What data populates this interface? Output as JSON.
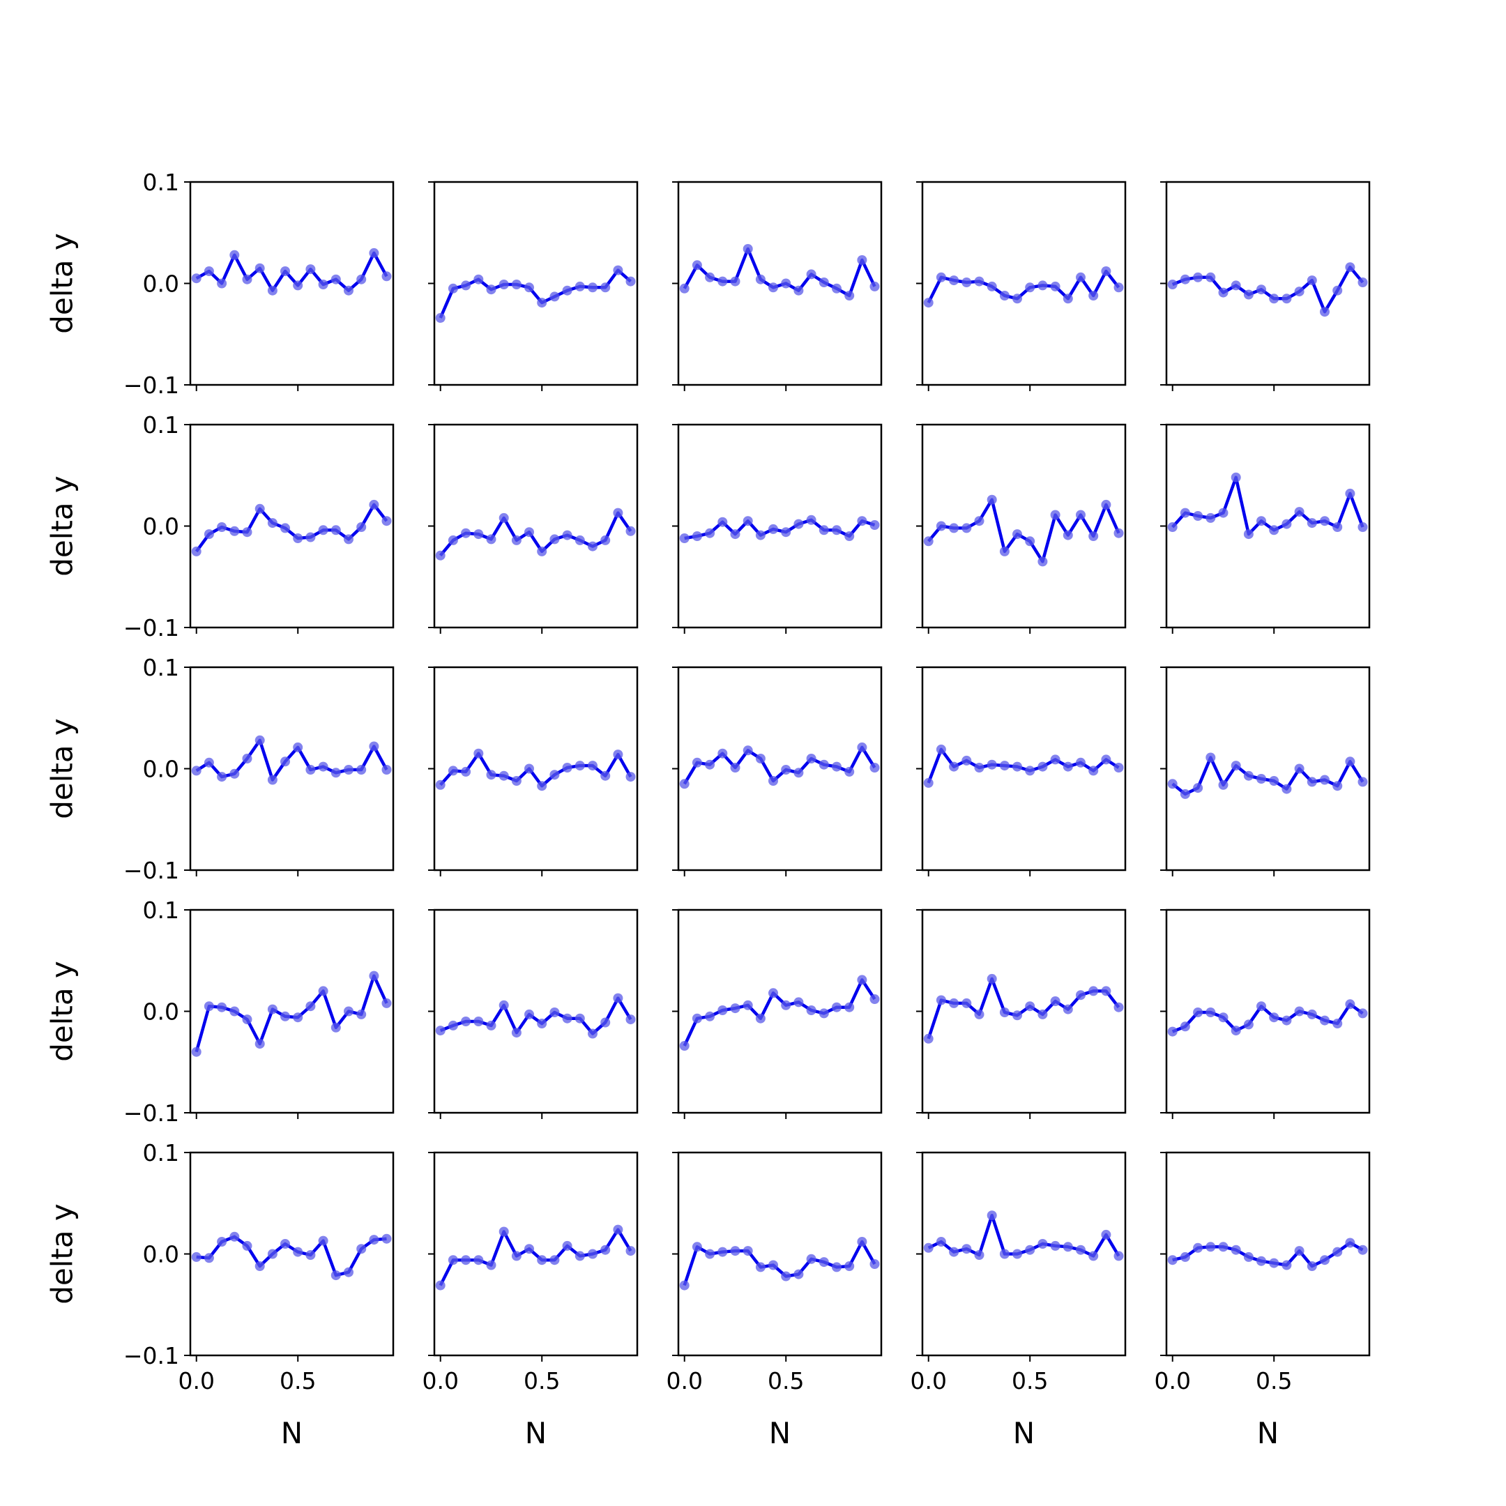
{
  "chart_data": {
    "type": "line",
    "layout": {
      "rows": 5,
      "cols": 5
    },
    "x": [
      0.0,
      0.0625,
      0.125,
      0.1875,
      0.25,
      0.3125,
      0.375,
      0.4375,
      0.5,
      0.5625,
      0.625,
      0.6875,
      0.75,
      0.8125,
      0.875,
      0.9375
    ],
    "xlim": [
      -0.03,
      0.97
    ],
    "ylim": [
      -0.1,
      0.1
    ],
    "xticks": [
      0.0,
      0.5
    ],
    "yticks": [
      -0.1,
      0.0,
      0.1
    ],
    "xtick_labels": [
      "0.0",
      "0.5"
    ],
    "ytick_labels": [
      "−0.1",
      "0.0",
      "0.1"
    ],
    "xlabel": "N",
    "ylabel": "delta y",
    "line_color": "#0000ee",
    "marker_color": "#5a5ae8",
    "grid": false,
    "panels": [
      [
        0.005,
        0.012,
        0.0,
        0.028,
        0.004,
        0.015,
        -0.007,
        0.012,
        -0.002,
        0.014,
        -0.001,
        0.004,
        -0.007,
        0.004,
        0.03,
        0.007
      ],
      [
        -0.034,
        -0.005,
        -0.002,
        0.004,
        -0.006,
        -0.001,
        -0.001,
        -0.004,
        -0.019,
        -0.013,
        -0.007,
        -0.003,
        -0.004,
        -0.004,
        0.013,
        0.002
      ],
      [
        -0.005,
        0.018,
        0.006,
        0.002,
        0.002,
        0.034,
        0.004,
        -0.004,
        0.0,
        -0.007,
        0.009,
        0.001,
        -0.005,
        -0.012,
        0.023,
        -0.003
      ],
      [
        -0.019,
        0.006,
        0.003,
        0.001,
        0.002,
        -0.003,
        -0.012,
        -0.015,
        -0.004,
        -0.002,
        -0.003,
        -0.015,
        0.006,
        -0.012,
        0.012,
        -0.004
      ],
      [
        -0.001,
        0.004,
        0.006,
        0.006,
        -0.009,
        -0.002,
        -0.011,
        -0.006,
        -0.015,
        -0.015,
        -0.008,
        0.003,
        -0.028,
        -0.007,
        0.016,
        0.001
      ],
      [
        -0.025,
        -0.008,
        -0.001,
        -0.005,
        -0.006,
        0.017,
        0.003,
        -0.002,
        -0.012,
        -0.011,
        -0.004,
        -0.004,
        -0.013,
        -0.001,
        0.021,
        0.005
      ],
      [
        -0.029,
        -0.014,
        -0.007,
        -0.008,
        -0.013,
        0.008,
        -0.014,
        -0.006,
        -0.025,
        -0.013,
        -0.009,
        -0.014,
        -0.02,
        -0.014,
        0.013,
        -0.005
      ],
      [
        -0.012,
        -0.01,
        -0.007,
        0.004,
        -0.008,
        0.005,
        -0.009,
        -0.003,
        -0.006,
        0.002,
        0.006,
        -0.004,
        -0.004,
        -0.01,
        0.005,
        0.001
      ],
      [
        -0.015,
        0.0,
        -0.002,
        -0.002,
        0.005,
        0.026,
        -0.025,
        -0.008,
        -0.015,
        -0.035,
        0.011,
        -0.009,
        0.011,
        -0.01,
        0.021,
        -0.007
      ],
      [
        -0.001,
        0.013,
        0.01,
        0.008,
        0.013,
        0.048,
        -0.008,
        0.005,
        -0.004,
        0.002,
        0.014,
        0.003,
        0.005,
        -0.001,
        0.032,
        -0.001
      ],
      [
        -0.002,
        0.006,
        -0.008,
        -0.005,
        0.01,
        0.028,
        -0.011,
        0.007,
        0.021,
        -0.001,
        0.002,
        -0.004,
        -0.001,
        -0.001,
        0.022,
        -0.001
      ],
      [
        -0.016,
        -0.002,
        -0.003,
        0.015,
        -0.006,
        -0.007,
        -0.012,
        0.0,
        -0.017,
        -0.006,
        0.001,
        0.003,
        0.003,
        -0.007,
        0.014,
        -0.008
      ],
      [
        -0.015,
        0.006,
        0.004,
        0.015,
        0.001,
        0.018,
        0.01,
        -0.012,
        -0.001,
        -0.004,
        0.01,
        0.004,
        0.002,
        -0.003,
        0.021,
        0.001
      ],
      [
        -0.014,
        0.019,
        0.002,
        0.008,
        0.001,
        0.004,
        0.003,
        0.002,
        -0.002,
        0.002,
        0.009,
        0.002,
        0.006,
        -0.002,
        0.009,
        0.001
      ],
      [
        -0.015,
        -0.025,
        -0.019,
        0.011,
        -0.016,
        0.003,
        -0.007,
        -0.01,
        -0.012,
        -0.02,
        0.0,
        -0.013,
        -0.011,
        -0.017,
        0.007,
        -0.013
      ],
      [
        -0.04,
        0.005,
        0.004,
        0.0,
        -0.008,
        -0.032,
        0.002,
        -0.005,
        -0.006,
        0.005,
        0.02,
        -0.016,
        0.0,
        -0.003,
        0.035,
        0.008
      ],
      [
        -0.019,
        -0.014,
        -0.01,
        -0.01,
        -0.014,
        0.006,
        -0.021,
        -0.003,
        -0.012,
        -0.001,
        -0.007,
        -0.007,
        -0.022,
        -0.011,
        0.013,
        -0.008
      ],
      [
        -0.034,
        -0.007,
        -0.005,
        0.001,
        0.003,
        0.006,
        -0.007,
        0.018,
        0.006,
        0.009,
        0.001,
        -0.002,
        0.004,
        0.004,
        0.031,
        0.012
      ],
      [
        -0.027,
        0.011,
        0.008,
        0.008,
        -0.003,
        0.032,
        -0.001,
        -0.004,
        0.005,
        -0.003,
        0.01,
        0.002,
        0.016,
        0.02,
        0.02,
        0.004
      ],
      [
        -0.02,
        -0.015,
        -0.001,
        -0.001,
        -0.006,
        -0.019,
        -0.013,
        0.005,
        -0.006,
        -0.009,
        0.0,
        -0.003,
        -0.009,
        -0.012,
        0.007,
        -0.002
      ],
      [
        -0.003,
        -0.004,
        0.012,
        0.017,
        0.008,
        -0.012,
        0.0,
        0.01,
        0.002,
        -0.001,
        0.013,
        -0.021,
        -0.018,
        0.005,
        0.014,
        0.015
      ],
      [
        -0.031,
        -0.006,
        -0.006,
        -0.006,
        -0.011,
        0.022,
        -0.002,
        0.005,
        -0.006,
        -0.006,
        0.008,
        -0.002,
        0.0,
        0.004,
        0.024,
        0.003
      ],
      [
        -0.031,
        0.007,
        0.0,
        0.002,
        0.003,
        0.003,
        -0.013,
        -0.011,
        -0.022,
        -0.02,
        -0.005,
        -0.008,
        -0.013,
        -0.012,
        0.012,
        -0.01
      ],
      [
        0.006,
        0.012,
        0.002,
        0.005,
        -0.001,
        0.038,
        0.0,
        0.0,
        0.004,
        0.01,
        0.008,
        0.007,
        0.004,
        -0.002,
        0.019,
        -0.002
      ],
      [
        -0.006,
        -0.003,
        0.006,
        0.007,
        0.007,
        0.004,
        -0.003,
        -0.007,
        -0.009,
        -0.011,
        0.003,
        -0.012,
        -0.006,
        0.002,
        0.011,
        0.004
      ]
    ]
  }
}
